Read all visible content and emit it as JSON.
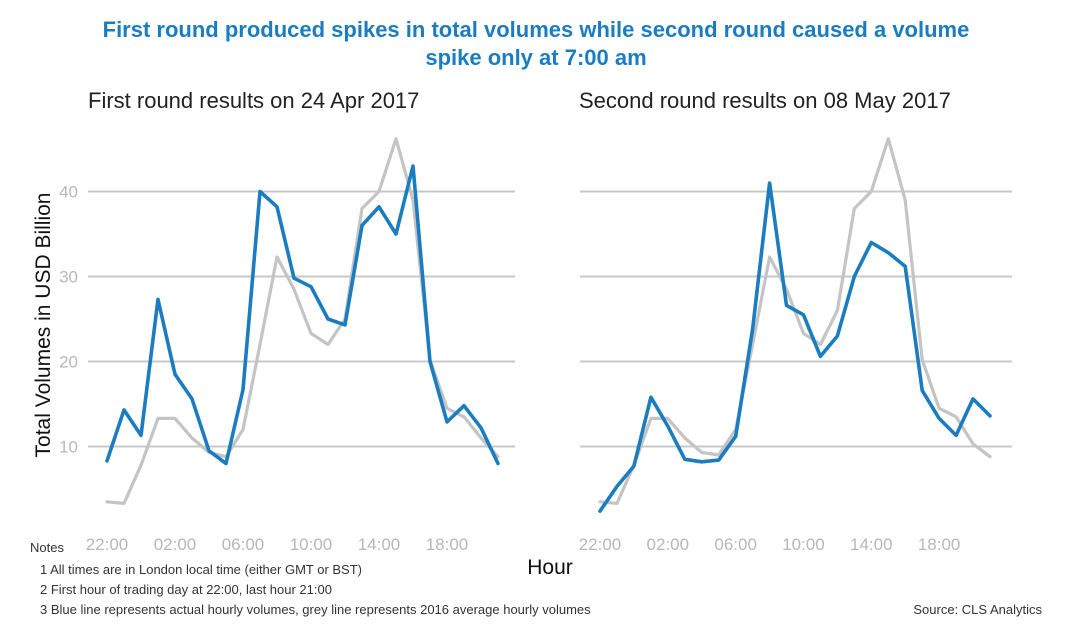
{
  "title": {
    "line1": "First round produced spikes in total volumes while second round caused a volume",
    "line2": "spike only at 7:00 am"
  },
  "y_axis_label": "Total Volumes in USD Billion",
  "x_axis_label": "Hour",
  "notes": {
    "heading": "Notes",
    "items": [
      "1 All times are in London local time (either GMT or BST)",
      "2 First hour of trading day at 22:00, last hour 21:00",
      "3 Blue line represents actual hourly volumes, grey line represents 2016 average hourly volumes"
    ]
  },
  "source": "Source: CLS Analytics",
  "colors": {
    "actual": "#1b7dbf",
    "average": "#c4c4c4",
    "grid": "#c8c8c8",
    "tick": "#b8b8b8"
  },
  "chart_data": [
    {
      "type": "line",
      "title": "First round results on 24 Apr 2017",
      "xlabel": "Hour",
      "ylabel": "Total Volumes in USD Billion",
      "x": [
        "22:00",
        "23:00",
        "00:00",
        "01:00",
        "02:00",
        "03:00",
        "04:00",
        "05:00",
        "06:00",
        "07:00",
        "08:00",
        "09:00",
        "10:00",
        "11:00",
        "12:00",
        "13:00",
        "14:00",
        "15:00",
        "16:00",
        "17:00",
        "18:00",
        "19:00",
        "20:00",
        "21:00"
      ],
      "xticks": [
        "22:00",
        "02:00",
        "06:00",
        "10:00",
        "14:00",
        "18:00"
      ],
      "yticks": [
        10,
        20,
        30,
        40
      ],
      "ylim": [
        1,
        48
      ],
      "grid": true,
      "series": [
        {
          "values": [
            3.5,
            3.3,
            7.8,
            13.3,
            13.3,
            11.0,
            9.3,
            8.8,
            12.0,
            22.0,
            32.3,
            28.5,
            23.3,
            22.0,
            25.0,
            38.0,
            40.0,
            46.2,
            39.0,
            20.2,
            14.5,
            13.5,
            11.0,
            8.8
          ]
        },
        {
          "values": [
            8.3,
            14.3,
            11.3,
            27.3,
            18.5,
            15.6,
            9.5,
            8.0,
            16.7,
            40.0,
            38.2,
            29.8,
            28.8,
            25.0,
            24.3,
            36.0,
            38.2,
            35.0,
            43.0,
            20.0,
            12.9,
            14.8,
            12.2,
            8.0
          ]
        }
      ]
    },
    {
      "type": "line",
      "title": "Second round results on 08 May 2017",
      "xlabel": "Hour",
      "x": [
        "22:00",
        "23:00",
        "00:00",
        "01:00",
        "02:00",
        "03:00",
        "04:00",
        "05:00",
        "06:00",
        "07:00",
        "08:00",
        "09:00",
        "10:00",
        "11:00",
        "12:00",
        "13:00",
        "14:00",
        "15:00",
        "16:00",
        "17:00",
        "18:00",
        "19:00",
        "20:00",
        "21:00"
      ],
      "xticks": [
        "22:00",
        "02:00",
        "06:00",
        "10:00",
        "14:00",
        "18:00"
      ],
      "yticks": [
        10,
        20,
        30,
        40
      ],
      "ylim": [
        1,
        48
      ],
      "grid": true,
      "series": [
        {
          "values": [
            3.5,
            3.3,
            7.8,
            13.3,
            13.3,
            11.0,
            9.3,
            9.0,
            12.0,
            22.0,
            32.3,
            28.5,
            23.3,
            22.0,
            26.0,
            38.0,
            40.0,
            46.2,
            39.0,
            20.2,
            14.5,
            13.5,
            10.3,
            8.8
          ]
        },
        {
          "values": [
            2.4,
            5.3,
            7.7,
            15.8,
            12.4,
            8.5,
            8.2,
            8.4,
            11.2,
            23.8,
            41.0,
            26.6,
            25.5,
            20.6,
            23.0,
            30.0,
            34.0,
            32.8,
            31.2,
            16.6,
            13.3,
            11.3,
            15.6,
            13.6
          ]
        }
      ]
    }
  ]
}
